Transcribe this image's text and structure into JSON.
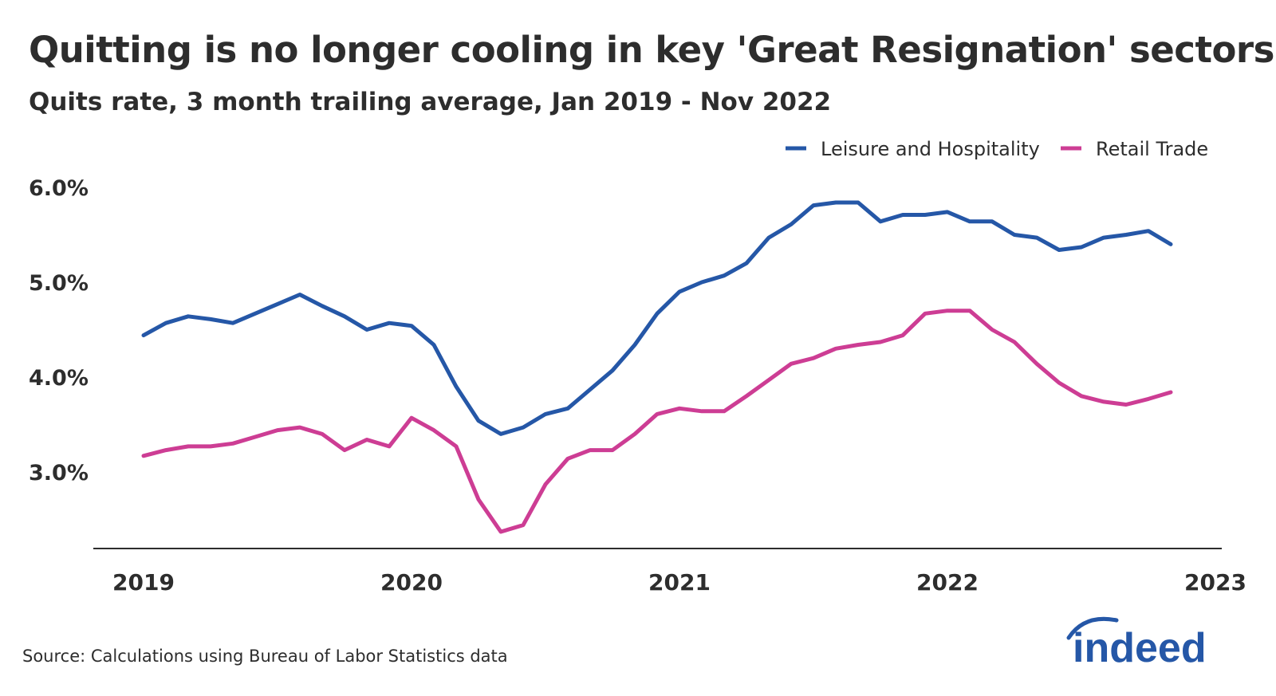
{
  "title": "Quitting is no longer cooling in key 'Great Resignation' sectors",
  "subtitle": "Quits rate, 3 month trailing average, Jan 2019 - Nov 2022",
  "source": "Source: Calculations using Bureau of Labor Statistics data",
  "logo_text": "indeed",
  "chart_data": {
    "type": "line",
    "title": "Quitting is no longer cooling in key 'Great Resignation' sectors",
    "subtitle": "Quits rate, 3 month trailing average, Jan 2019 - Nov 2022",
    "xlabel": "",
    "ylabel": "",
    "x_start": "2019-01",
    "x_end": "2022-11",
    "x_frequency": "monthly",
    "x_ticks": [
      "2019",
      "2020",
      "2021",
      "2022",
      "2023"
    ],
    "y_ticks": [
      "3.0%",
      "4.0%",
      "5.0%",
      "6.0%"
    ],
    "y_tick_values": [
      3.0,
      4.0,
      5.0,
      6.0
    ],
    "ylim": [
      2.2,
      6.0
    ],
    "grid": false,
    "legend_position": "top-right",
    "series": [
      {
        "name": "Leisure and Hospitality",
        "color": "#2557a7",
        "values": [
          4.44,
          4.57,
          4.64,
          4.61,
          4.57,
          4.67,
          4.77,
          4.87,
          4.75,
          4.64,
          4.5,
          4.57,
          4.54,
          4.34,
          3.9,
          3.54,
          3.4,
          3.47,
          3.61,
          3.67,
          3.87,
          4.07,
          4.34,
          4.67,
          4.9,
          5.0,
          5.07,
          5.2,
          5.47,
          5.61,
          5.81,
          5.84,
          5.84,
          5.64,
          5.71,
          5.71,
          5.74,
          5.64,
          5.64,
          5.5,
          5.47,
          5.34,
          5.37,
          5.47,
          5.5,
          5.54,
          5.4
        ]
      },
      {
        "name": "Retail Trade",
        "color": "#cd3d94",
        "values": [
          3.17,
          3.23,
          3.27,
          3.27,
          3.3,
          3.37,
          3.44,
          3.47,
          3.4,
          3.23,
          3.34,
          3.27,
          3.57,
          3.44,
          3.27,
          2.71,
          2.37,
          2.44,
          2.87,
          3.14,
          3.23,
          3.23,
          3.4,
          3.61,
          3.67,
          3.64,
          3.64,
          3.8,
          3.97,
          4.14,
          4.2,
          4.3,
          4.34,
          4.37,
          4.44,
          4.67,
          4.7,
          4.7,
          4.5,
          4.37,
          4.14,
          3.94,
          3.8,
          3.74,
          3.71,
          3.77,
          3.84
        ]
      }
    ]
  }
}
